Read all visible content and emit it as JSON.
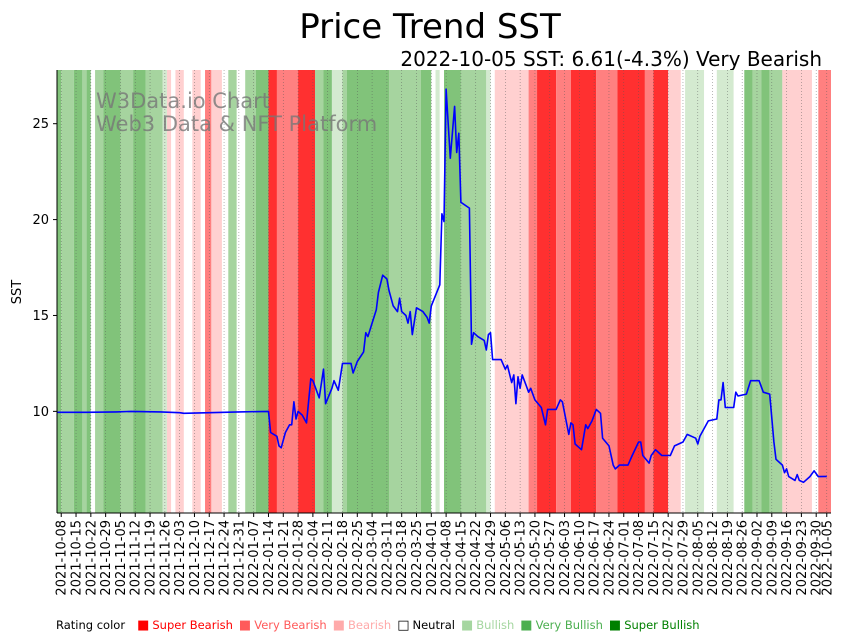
{
  "header": {
    "title": "Price Trend SST",
    "subtitle": "2022-10-05 SST: 6.61(-4.3%) Very Bearish"
  },
  "watermark": {
    "line1": "W3Data.io Chart",
    "line2": "Web3 Data & NFT Platform"
  },
  "legend": {
    "label": "Rating color",
    "items": [
      {
        "label": "Super Bearish",
        "color": "#ff0000"
      },
      {
        "label": "Very Bearish",
        "color": "#ff5a5a"
      },
      {
        "label": "Bearish",
        "color": "#ffaaaa"
      },
      {
        "label": "Neutral",
        "color": "#000000",
        "hollow": true
      },
      {
        "label": "Bullish",
        "color": "#a5d6a0"
      },
      {
        "label": "Very Bullish",
        "color": "#4caf50"
      },
      {
        "label": "Super Bullish",
        "color": "#008000"
      }
    ]
  },
  "rating_colors": {
    "super_bearish": "#ff3030",
    "very_bearish": "#ff8080",
    "bearish": "#ffd0d0",
    "neutral": "#ffffff",
    "bullish": "#d4ead0",
    "bullish_mid": "#a6d49f",
    "very_bullish": "#81c37a",
    "line": "#0000ff"
  },
  "chart_data": {
    "type": "line",
    "title": "Price Trend SST",
    "xlabel": "",
    "ylabel": "SST",
    "x_range": [
      "2021-10-06",
      "2022-10-07"
    ],
    "ylim": [
      4.7,
      27.8
    ],
    "yticks": [
      10,
      15,
      20,
      25
    ],
    "xticks": [
      "2021-10-08",
      "2021-10-15",
      "2021-10-22",
      "2021-10-29",
      "2021-11-05",
      "2021-11-12",
      "2021-11-19",
      "2021-11-26",
      "2021-12-03",
      "2021-12-10",
      "2021-12-17",
      "2021-12-24",
      "2021-12-31",
      "2022-01-07",
      "2022-01-14",
      "2022-01-21",
      "2022-01-28",
      "2022-02-04",
      "2022-02-11",
      "2022-02-18",
      "2022-02-25",
      "2022-03-04",
      "2022-03-11",
      "2022-03-18",
      "2022-03-25",
      "2022-04-01",
      "2022-04-08",
      "2022-04-15",
      "2022-04-22",
      "2022-04-29",
      "2022-05-06",
      "2022-05-13",
      "2022-05-20",
      "2022-05-27",
      "2022-06-03",
      "2022-06-10",
      "2022-06-17",
      "2022-06-24",
      "2022-07-01",
      "2022-07-08",
      "2022-07-15",
      "2022-07-22",
      "2022-07-29",
      "2022-08-05",
      "2022-08-12",
      "2022-08-19",
      "2022-08-26",
      "2022-09-02",
      "2022-09-09",
      "2022-09-16",
      "2022-09-23",
      "2022-09-30",
      "2022-10-05"
    ],
    "series": [
      {
        "name": "SST",
        "points": [
          [
            "2021-10-06",
            9.95
          ],
          [
            "2021-10-20",
            9.95
          ],
          [
            "2021-11-03",
            9.97
          ],
          [
            "2021-11-10",
            10.0
          ],
          [
            "2021-11-24",
            9.97
          ],
          [
            "2021-12-03",
            9.93
          ],
          [
            "2021-12-05",
            9.9
          ],
          [
            "2021-12-17",
            9.93
          ],
          [
            "2021-12-31",
            9.97
          ],
          [
            "2022-01-14",
            10.0
          ],
          [
            "2022-01-15",
            8.9
          ],
          [
            "2022-01-18",
            8.7
          ],
          [
            "2022-01-19",
            8.2
          ],
          [
            "2022-01-20",
            8.1
          ],
          [
            "2022-01-22",
            8.9
          ],
          [
            "2022-01-24",
            9.3
          ],
          [
            "2022-01-25",
            9.3
          ],
          [
            "2022-01-26",
            10.5
          ],
          [
            "2022-01-27",
            9.6
          ],
          [
            "2022-01-28",
            10.0
          ],
          [
            "2022-01-30",
            9.8
          ],
          [
            "2022-02-01",
            9.4
          ],
          [
            "2022-02-03",
            11.7
          ],
          [
            "2022-02-04",
            11.6
          ],
          [
            "2022-02-07",
            10.7
          ],
          [
            "2022-02-09",
            12.2
          ],
          [
            "2022-02-10",
            10.4
          ],
          [
            "2022-02-13",
            11.2
          ],
          [
            "2022-02-14",
            11.6
          ],
          [
            "2022-02-16",
            11.1
          ],
          [
            "2022-02-18",
            12.5
          ],
          [
            "2022-02-22",
            12.5
          ],
          [
            "2022-02-23",
            12.0
          ],
          [
            "2022-02-25",
            12.6
          ],
          [
            "2022-02-28",
            13.1
          ],
          [
            "2022-03-01",
            14.1
          ],
          [
            "2022-03-02",
            13.9
          ],
          [
            "2022-03-04",
            14.6
          ],
          [
            "2022-03-06",
            15.3
          ],
          [
            "2022-03-07",
            16.2
          ],
          [
            "2022-03-09",
            17.1
          ],
          [
            "2022-03-11",
            16.9
          ],
          [
            "2022-03-12",
            16.3
          ],
          [
            "2022-03-14",
            15.5
          ],
          [
            "2022-03-16",
            15.2
          ],
          [
            "2022-03-17",
            15.9
          ],
          [
            "2022-03-18",
            15.2
          ],
          [
            "2022-03-20",
            15.0
          ],
          [
            "2022-03-21",
            14.6
          ],
          [
            "2022-03-22",
            15.2
          ],
          [
            "2022-03-23",
            14.0
          ],
          [
            "2022-03-25",
            15.4
          ],
          [
            "2022-03-28",
            15.2
          ],
          [
            "2022-03-30",
            14.9
          ],
          [
            "2022-03-31",
            14.6
          ],
          [
            "2022-04-01",
            15.5
          ],
          [
            "2022-04-05",
            16.6
          ],
          [
            "2022-04-06",
            20.3
          ],
          [
            "2022-04-07",
            19.9
          ],
          [
            "2022-04-08",
            26.8
          ],
          [
            "2022-04-10",
            23.2
          ],
          [
            "2022-04-12",
            25.9
          ],
          [
            "2022-04-13",
            23.5
          ],
          [
            "2022-04-14",
            24.5
          ],
          [
            "2022-04-15",
            20.9
          ],
          [
            "2022-04-19",
            20.6
          ],
          [
            "2022-04-20",
            13.5
          ],
          [
            "2022-04-21",
            14.1
          ],
          [
            "2022-04-23",
            13.9
          ],
          [
            "2022-04-26",
            13.7
          ],
          [
            "2022-04-27",
            13.2
          ],
          [
            "2022-04-28",
            14.0
          ],
          [
            "2022-04-29",
            14.1
          ],
          [
            "2022-04-30",
            12.7
          ],
          [
            "2022-05-04",
            12.7
          ],
          [
            "2022-05-06",
            12.2
          ],
          [
            "2022-05-07",
            12.4
          ],
          [
            "2022-05-09",
            11.5
          ],
          [
            "2022-05-10",
            11.9
          ],
          [
            "2022-05-11",
            10.4
          ],
          [
            "2022-05-12",
            11.8
          ],
          [
            "2022-05-13",
            11.2
          ],
          [
            "2022-05-14",
            11.9
          ],
          [
            "2022-05-16",
            11.3
          ],
          [
            "2022-05-17",
            11.0
          ],
          [
            "2022-05-18",
            11.2
          ],
          [
            "2022-05-20",
            10.6
          ],
          [
            "2022-05-23",
            10.2
          ],
          [
            "2022-05-25",
            9.3
          ],
          [
            "2022-05-26",
            10.1
          ],
          [
            "2022-05-30",
            10.1
          ],
          [
            "2022-06-01",
            10.6
          ],
          [
            "2022-06-02",
            10.5
          ],
          [
            "2022-06-05",
            8.8
          ],
          [
            "2022-06-06",
            9.4
          ],
          [
            "2022-06-07",
            9.3
          ],
          [
            "2022-06-08",
            8.3
          ],
          [
            "2022-06-11",
            8.0
          ],
          [
            "2022-06-13",
            9.3
          ],
          [
            "2022-06-14",
            9.1
          ],
          [
            "2022-06-16",
            9.5
          ],
          [
            "2022-06-18",
            10.1
          ],
          [
            "2022-06-20",
            9.9
          ],
          [
            "2022-06-21",
            8.6
          ],
          [
            "2022-06-24",
            8.2
          ],
          [
            "2022-06-26",
            7.2
          ],
          [
            "2022-06-27",
            7.0
          ],
          [
            "2022-06-29",
            7.2
          ],
          [
            "2022-07-03",
            7.2
          ],
          [
            "2022-07-05",
            7.7
          ],
          [
            "2022-07-08",
            8.4
          ],
          [
            "2022-07-09",
            8.4
          ],
          [
            "2022-07-10",
            7.7
          ],
          [
            "2022-07-13",
            7.3
          ],
          [
            "2022-07-14",
            7.7
          ],
          [
            "2022-07-16",
            8.0
          ],
          [
            "2022-07-19",
            7.7
          ],
          [
            "2022-07-23",
            7.7
          ],
          [
            "2022-07-25",
            8.2
          ],
          [
            "2022-07-29",
            8.4
          ],
          [
            "2022-07-31",
            8.8
          ],
          [
            "2022-08-04",
            8.6
          ],
          [
            "2022-08-05",
            8.3
          ],
          [
            "2022-08-06",
            8.7
          ],
          [
            "2022-08-10",
            9.5
          ],
          [
            "2022-08-14",
            9.6
          ],
          [
            "2022-08-15",
            10.6
          ],
          [
            "2022-08-16",
            10.6
          ],
          [
            "2022-08-17",
            11.5
          ],
          [
            "2022-08-18",
            10.2
          ],
          [
            "2022-08-22",
            10.2
          ],
          [
            "2022-08-23",
            11.0
          ],
          [
            "2022-08-24",
            10.8
          ],
          [
            "2022-08-28",
            10.9
          ],
          [
            "2022-08-30",
            11.6
          ],
          [
            "2022-09-03",
            11.6
          ],
          [
            "2022-09-05",
            11.0
          ],
          [
            "2022-09-08",
            10.9
          ],
          [
            "2022-09-10",
            8.4
          ],
          [
            "2022-09-11",
            7.5
          ],
          [
            "2022-09-14",
            7.2
          ],
          [
            "2022-09-15",
            6.8
          ],
          [
            "2022-09-16",
            7.0
          ],
          [
            "2022-09-17",
            6.6
          ],
          [
            "2022-09-20",
            6.4
          ],
          [
            "2022-09-21",
            6.7
          ],
          [
            "2022-09-22",
            6.4
          ],
          [
            "2022-09-24",
            6.3
          ],
          [
            "2022-09-27",
            6.6
          ],
          [
            "2022-09-29",
            6.9
          ],
          [
            "2022-10-01",
            6.6
          ],
          [
            "2022-10-05",
            6.61
          ]
        ]
      }
    ],
    "rating_bands": [
      [
        "2021-10-06",
        "2021-10-08",
        "very_bullish"
      ],
      [
        "2021-10-08",
        "2021-10-14",
        "bullish_mid"
      ],
      [
        "2021-10-14",
        "2021-10-18",
        "very_bullish"
      ],
      [
        "2021-10-18",
        "2021-10-20",
        "bullish_mid"
      ],
      [
        "2021-10-20",
        "2021-10-22",
        "very_bullish"
      ],
      [
        "2021-10-22",
        "2021-10-24",
        "neutral"
      ],
      [
        "2021-10-24",
        "2021-10-28",
        "bullish_mid"
      ],
      [
        "2021-10-28",
        "2021-11-05",
        "very_bullish"
      ],
      [
        "2021-11-05",
        "2021-11-11",
        "bullish_mid"
      ],
      [
        "2021-11-11",
        "2021-11-17",
        "very_bullish"
      ],
      [
        "2021-11-17",
        "2021-11-25",
        "bullish_mid"
      ],
      [
        "2021-11-25",
        "2021-11-27",
        "bullish"
      ],
      [
        "2021-11-27",
        "2021-11-29",
        "bearish"
      ],
      [
        "2021-11-29",
        "2021-12-01",
        "neutral"
      ],
      [
        "2021-12-01",
        "2021-12-05",
        "bearish"
      ],
      [
        "2021-12-05",
        "2021-12-09",
        "neutral"
      ],
      [
        "2021-12-09",
        "2021-12-13",
        "bearish"
      ],
      [
        "2021-12-13",
        "2021-12-15",
        "neutral"
      ],
      [
        "2021-12-15",
        "2021-12-18",
        "very_bearish"
      ],
      [
        "2021-12-18",
        "2021-12-23",
        "bearish"
      ],
      [
        "2021-12-23",
        "2021-12-26",
        "neutral"
      ],
      [
        "2021-12-26",
        "2021-12-30",
        "bullish_mid"
      ],
      [
        "2021-12-30",
        "2022-01-03",
        "neutral"
      ],
      [
        "2022-01-03",
        "2022-01-08",
        "bullish_mid"
      ],
      [
        "2022-01-08",
        "2022-01-14",
        "very_bullish"
      ],
      [
        "2022-01-14",
        "2022-01-18",
        "super_bearish"
      ],
      [
        "2022-01-18",
        "2022-01-28",
        "very_bearish"
      ],
      [
        "2022-01-28",
        "2022-02-05",
        "super_bearish"
      ],
      [
        "2022-02-05",
        "2022-02-09",
        "bullish_mid"
      ],
      [
        "2022-02-09",
        "2022-02-13",
        "very_bullish"
      ],
      [
        "2022-02-13",
        "2022-02-18",
        "bullish"
      ],
      [
        "2022-02-18",
        "2022-02-20",
        "bullish_mid"
      ],
      [
        "2022-02-20",
        "2022-03-12",
        "very_bullish"
      ],
      [
        "2022-03-12",
        "2022-03-27",
        "bullish_mid"
      ],
      [
        "2022-03-27",
        "2022-04-01",
        "very_bullish"
      ],
      [
        "2022-04-01",
        "2022-04-03",
        "neutral"
      ],
      [
        "2022-04-03",
        "2022-04-05",
        "bullish"
      ],
      [
        "2022-04-05",
        "2022-04-07",
        "neutral"
      ],
      [
        "2022-04-07",
        "2022-04-15",
        "very_bullish"
      ],
      [
        "2022-04-15",
        "2022-04-27",
        "bullish_mid"
      ],
      [
        "2022-04-27",
        "2022-04-29",
        "bullish"
      ],
      [
        "2022-04-29",
        "2022-05-01",
        "neutral"
      ],
      [
        "2022-05-01",
        "2022-05-17",
        "bearish"
      ],
      [
        "2022-05-17",
        "2022-05-21",
        "very_bearish"
      ],
      [
        "2022-05-21",
        "2022-05-30",
        "super_bearish"
      ],
      [
        "2022-05-30",
        "2022-06-06",
        "very_bearish"
      ],
      [
        "2022-06-06",
        "2022-06-18",
        "super_bearish"
      ],
      [
        "2022-06-18",
        "2022-06-28",
        "very_bearish"
      ],
      [
        "2022-06-28",
        "2022-07-11",
        "super_bearish"
      ],
      [
        "2022-07-11",
        "2022-07-15",
        "very_bearish"
      ],
      [
        "2022-07-15",
        "2022-07-22",
        "super_bearish"
      ],
      [
        "2022-07-22",
        "2022-07-28",
        "bearish"
      ],
      [
        "2022-07-28",
        "2022-07-30",
        "neutral"
      ],
      [
        "2022-07-30",
        "2022-08-08",
        "bullish"
      ],
      [
        "2022-08-08",
        "2022-08-14",
        "neutral"
      ],
      [
        "2022-08-14",
        "2022-08-22",
        "bullish"
      ],
      [
        "2022-08-22",
        "2022-08-27",
        "neutral"
      ],
      [
        "2022-08-27",
        "2022-08-31",
        "very_bullish"
      ],
      [
        "2022-08-31",
        "2022-09-04",
        "bullish_mid"
      ],
      [
        "2022-09-04",
        "2022-09-08",
        "very_bullish"
      ],
      [
        "2022-09-08",
        "2022-09-14",
        "bullish_mid"
      ],
      [
        "2022-09-14",
        "2022-09-28",
        "bearish"
      ],
      [
        "2022-09-28",
        "2022-10-01",
        "neutral"
      ],
      [
        "2022-10-01",
        "2022-10-07",
        "very_bearish"
      ]
    ]
  }
}
